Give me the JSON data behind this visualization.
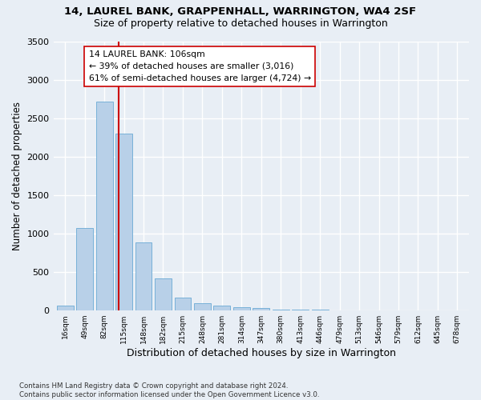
{
  "title1": "14, LAUREL BANK, GRAPPENHALL, WARRINGTON, WA4 2SF",
  "title2": "Size of property relative to detached houses in Warrington",
  "xlabel": "Distribution of detached houses by size in Warrington",
  "ylabel": "Number of detached properties",
  "footnote": "Contains HM Land Registry data © Crown copyright and database right 2024.\nContains public sector information licensed under the Open Government Licence v3.0.",
  "bar_labels": [
    "16sqm",
    "49sqm",
    "82sqm",
    "115sqm",
    "148sqm",
    "182sqm",
    "215sqm",
    "248sqm",
    "281sqm",
    "314sqm",
    "347sqm",
    "380sqm",
    "413sqm",
    "446sqm",
    "479sqm",
    "513sqm",
    "546sqm",
    "579sqm",
    "612sqm",
    "645sqm",
    "678sqm"
  ],
  "bar_values": [
    60,
    1070,
    2710,
    2300,
    880,
    415,
    160,
    90,
    55,
    40,
    25,
    10,
    5,
    3,
    2,
    1,
    1,
    0,
    0,
    0,
    0
  ],
  "bar_color": "#b8d0e8",
  "bar_edge_color": "#6aaad4",
  "property_label": "14 LAUREL BANK: 106sqm",
  "annotation_line1": "← 39% of detached houses are smaller (3,016)",
  "annotation_line2": "61% of semi-detached houses are larger (4,724) →",
  "vline_color": "#cc0000",
  "annotation_box_facecolor": "#ffffff",
  "annotation_box_edgecolor": "#cc0000",
  "ylim_max": 3500,
  "yticks": [
    0,
    500,
    1000,
    1500,
    2000,
    2500,
    3000,
    3500
  ],
  "bg_color": "#e8eef5",
  "plot_bg_color": "#e8eef5",
  "grid_color": "#ffffff",
  "vline_x_index": 2.73
}
